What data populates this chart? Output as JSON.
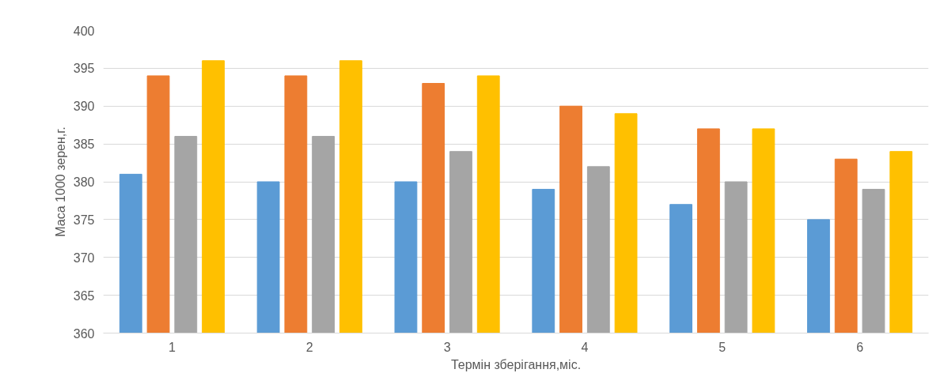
{
  "chart_data": {
    "type": "bar",
    "xlabel": "Термін зберігання,міс.",
    "ylabel": "Маса 1000 зерен,г.",
    "categories": [
      "1",
      "2",
      "3",
      "4",
      "5",
      "6"
    ],
    "series": [
      {
        "color": "#5b9bd5",
        "values": [
          381,
          380,
          380,
          379,
          377,
          375
        ]
      },
      {
        "color": "#ed7d31",
        "values": [
          394,
          394,
          393,
          390,
          387,
          383
        ]
      },
      {
        "color": "#a5a5a5",
        "values": [
          386,
          386,
          384,
          382,
          380,
          379
        ]
      },
      {
        "color": "#ffc000",
        "values": [
          396,
          396,
          394,
          389,
          387,
          384
        ]
      }
    ],
    "ylim": [
      360,
      400
    ],
    "yticks": [
      360,
      365,
      370,
      375,
      380,
      385,
      390,
      395,
      400
    ],
    "grid": "y"
  }
}
